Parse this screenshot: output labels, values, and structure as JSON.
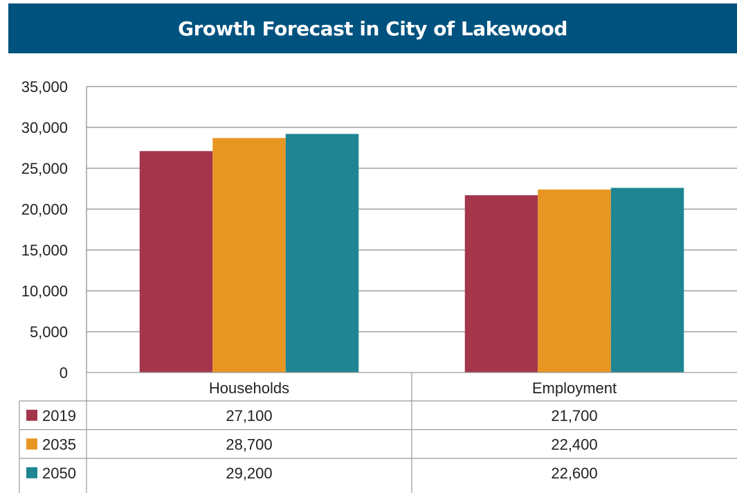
{
  "chart_data": {
    "type": "bar",
    "title": "Growth Forecast in City of Lakewood",
    "categories": [
      "Households",
      "Employment"
    ],
    "series": [
      {
        "name": "2019",
        "color": "#a3364b",
        "values": [
          27100,
          21700
        ],
        "labels": [
          "27,100",
          "21,700"
        ]
      },
      {
        "name": "2035",
        "color": "#e89622",
        "values": [
          28700,
          22400
        ],
        "labels": [
          "28,700",
          "22,400"
        ]
      },
      {
        "name": "2050",
        "color": "#1f8593",
        "values": [
          29200,
          22600
        ],
        "labels": [
          "29,200",
          "22,600"
        ]
      }
    ],
    "ylim": [
      0,
      35000
    ],
    "yticks": [
      0,
      5000,
      10000,
      15000,
      20000,
      25000,
      30000,
      35000
    ],
    "ytick_labels": [
      "0",
      "5,000",
      "10,000",
      "15,000",
      "20,000",
      "25,000",
      "30,000",
      "35,000"
    ],
    "grid": true,
    "legend": "data-table"
  }
}
